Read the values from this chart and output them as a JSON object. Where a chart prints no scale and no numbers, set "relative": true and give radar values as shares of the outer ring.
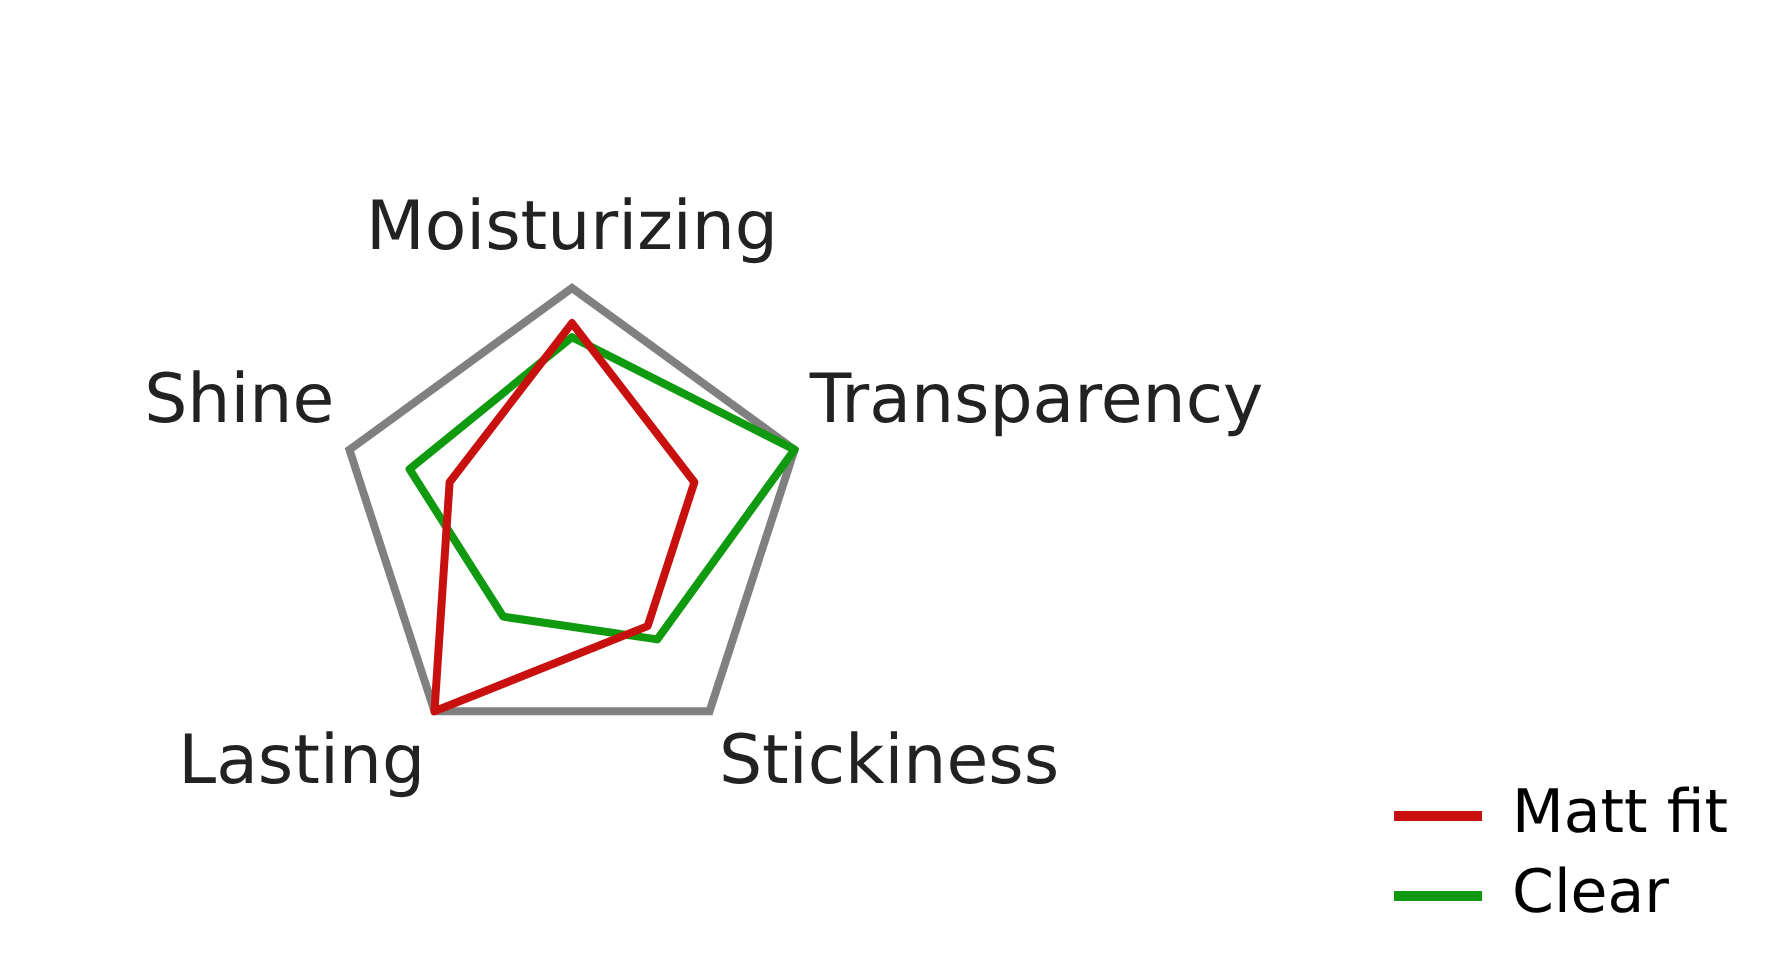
{
  "chart_data": {
    "type": "radar",
    "relative": true,
    "categories": [
      "Moisturizing",
      "Transparency",
      "Stickiness",
      "Lasting",
      "Shine"
    ],
    "series": [
      {
        "name": "Matt fit",
        "color": "#c8100f",
        "values": [
          0.85,
          0.55,
          0.55,
          1,
          0.55
        ]
      },
      {
        "name": "Clear",
        "color": "#109a10",
        "values": [
          0.79,
          1,
          0.62,
          0.5,
          0.73
        ]
      }
    ],
    "grid": true,
    "legend": "bottom right",
    "marker": "none",
    "line_style": "solid"
  }
}
